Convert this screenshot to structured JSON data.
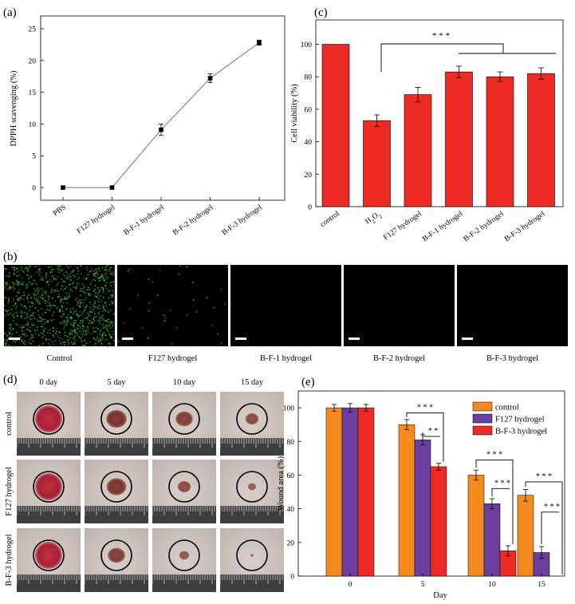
{
  "panels": {
    "a": "(a)",
    "b": "(b)",
    "c": "(c)",
    "d": "(d)",
    "e": "(e)"
  },
  "chart_data": [
    {
      "id": "a",
      "type": "line",
      "categories": [
        "PBS",
        "F127 hydrogel",
        "B-F-1 hydrogel",
        "B-F-2 hydrogel",
        "B-F-3 hydrogel"
      ],
      "values": [
        0,
        0,
        9.1,
        17.2,
        22.8
      ],
      "errors": [
        0.1,
        0.1,
        0.9,
        0.7,
        0.4
      ],
      "ylabel": "DPPH scavenging (%)",
      "ylim": [
        -2,
        27
      ],
      "yticks": [
        0,
        5,
        10,
        15,
        20,
        25
      ]
    },
    {
      "id": "c",
      "type": "bar",
      "categories": [
        "control",
        "H2O2",
        "F127 hydrogel",
        "B-F-1 hydrogel",
        "B-F-2 hydrogel",
        "B-F-3 hydrogel"
      ],
      "values": [
        100,
        53,
        69,
        83,
        80,
        82
      ],
      "errors": [
        0,
        3.5,
        4.5,
        3.5,
        3,
        3.5
      ],
      "ylabel": "Cell viability (%)",
      "ylim": [
        0,
        115
      ],
      "yticks": [
        0,
        20,
        40,
        60,
        80,
        100
      ],
      "color": "#ee2a24",
      "significance": "* * *"
    },
    {
      "id": "e",
      "type": "bar",
      "categories": [
        "0",
        "5",
        "10",
        "15"
      ],
      "series": [
        {
          "name": "control",
          "values": [
            100,
            90,
            60,
            48
          ],
          "errors": [
            2,
            3,
            3,
            3.5
          ],
          "color": "#f58a1f"
        },
        {
          "name": "F127 hydrogel",
          "values": [
            100,
            81,
            43,
            14
          ],
          "errors": [
            2.5,
            3,
            3,
            3.5
          ],
          "color": "#6a3fa0"
        },
        {
          "name": "B-F-3 hydrogel",
          "values": [
            100,
            65,
            15,
            0
          ],
          "errors": [
            2,
            2,
            3,
            0
          ],
          "color": "#ee2a24"
        }
      ],
      "xlabel": "Day",
      "ylabel": "Wound area (%)",
      "ylim": [
        0,
        110
      ],
      "yticks": [
        0,
        20,
        40,
        60,
        80,
        100
      ],
      "legend": "top-right",
      "significance": [
        {
          "day": "5",
          "labels": [
            "* * *",
            "* *"
          ]
        },
        {
          "day": "10",
          "labels": [
            "* * *",
            "* * *"
          ]
        },
        {
          "day": "15",
          "labels": [
            "* * *",
            "* * *"
          ]
        }
      ]
    }
  ],
  "fluorescence": {
    "labels": [
      "Control",
      "F127 hydrogel",
      "B-F-1 hydrogel",
      "B-F-2 hydrogel",
      "B-F-3 hydrogel"
    ],
    "cell_density": [
      900,
      35,
      0,
      0,
      0
    ],
    "cell_color": "#33cc33"
  },
  "wound_photos": {
    "days": [
      "0 day",
      "5 day",
      "10 day",
      "15 day"
    ],
    "groups": [
      "control",
      "F127 hydrogel",
      "B-F-3 hydrogel"
    ]
  }
}
